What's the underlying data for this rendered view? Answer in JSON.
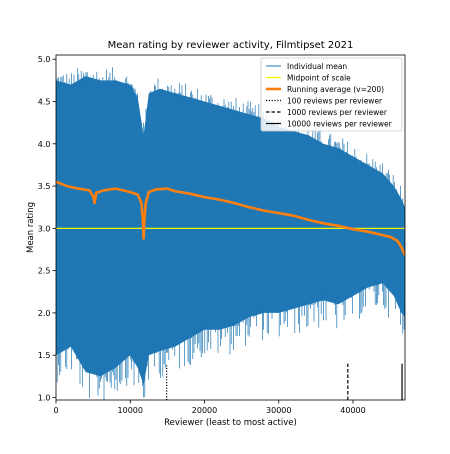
{
  "chart_data": {
    "type": "line",
    "title": "Mean rating by reviewer activity, Filmtipset 2021",
    "xlabel": "Reviewer (least to most active)",
    "ylabel": "Mean rating",
    "xlim": [
      0,
      47000
    ],
    "ylim": [
      0.97,
      5.05
    ],
    "xticks": [
      0,
      10000,
      20000,
      30000,
      40000
    ],
    "xtick_labels": [
      "0",
      "10000",
      "20000",
      "30000",
      "40000"
    ],
    "yticks": [
      1.0,
      1.5,
      2.0,
      2.5,
      3.0,
      3.5,
      4.0,
      4.5,
      5.0
    ],
    "ytick_labels": [
      "1.0",
      "1.5",
      "2.0",
      "2.5",
      "3.0",
      "3.5",
      "4.0",
      "4.5",
      "5.0"
    ],
    "grid": false,
    "legend_position": "top-right",
    "series": [
      {
        "name": "Individual mean",
        "style": "band",
        "color": "#1f77b4",
        "x": [
          0,
          2000,
          4000,
          6000,
          8000,
          10000,
          11000,
          11800,
          12500,
          14000,
          16000,
          18000,
          20000,
          22000,
          24000,
          26000,
          28000,
          30000,
          32000,
          34000,
          36000,
          38000,
          40000,
          42000,
          44000,
          45500,
          46500,
          47000
        ],
        "upper": [
          4.75,
          4.7,
          4.8,
          4.75,
          4.75,
          4.7,
          4.55,
          4.1,
          4.6,
          4.65,
          4.6,
          4.55,
          4.5,
          4.45,
          4.4,
          4.35,
          4.3,
          4.2,
          4.15,
          4.1,
          4.0,
          3.95,
          3.85,
          3.75,
          3.65,
          3.5,
          3.35,
          3.25
        ],
        "lower": [
          1.5,
          1.6,
          1.3,
          1.25,
          1.35,
          1.5,
          1.35,
          1.15,
          1.5,
          1.55,
          1.6,
          1.7,
          1.8,
          1.8,
          1.85,
          1.95,
          2.0,
          2.0,
          2.05,
          2.1,
          2.15,
          2.1,
          2.2,
          2.3,
          2.35,
          2.2,
          2.0,
          1.95
        ]
      },
      {
        "name": "Midpoint of scale",
        "style": "hline",
        "color": "#f5f500",
        "y": 3.0
      },
      {
        "name": "Running average (v=200)",
        "style": "line",
        "color": "#ff7f0e",
        "x": [
          0,
          1500,
          3000,
          4500,
          5000,
          5200,
          5400,
          6500,
          8000,
          9500,
          11000,
          11500,
          11700,
          11800,
          11900,
          12100,
          12500,
          13500,
          15000,
          16000,
          18000,
          20000,
          22000,
          24000,
          26000,
          28000,
          30000,
          32000,
          34000,
          36000,
          38000,
          40000,
          42000,
          44000,
          45000,
          46000,
          46500,
          47000
        ],
        "y": [
          3.55,
          3.5,
          3.47,
          3.45,
          3.38,
          3.3,
          3.42,
          3.45,
          3.47,
          3.44,
          3.4,
          3.3,
          3.1,
          2.88,
          3.1,
          3.3,
          3.43,
          3.46,
          3.47,
          3.44,
          3.41,
          3.37,
          3.34,
          3.3,
          3.25,
          3.21,
          3.18,
          3.15,
          3.1,
          3.06,
          3.03,
          2.99,
          2.96,
          2.92,
          2.9,
          2.85,
          2.78,
          2.68
        ]
      }
    ],
    "markers": [
      {
        "name": "100 reviews per reviewer",
        "style": "dotted",
        "x": 14900,
        "y_top": 1.4
      },
      {
        "name": "1000 reviews per reviewer",
        "style": "dashed",
        "x": 39300,
        "y_top": 1.4
      },
      {
        "name": "10000 reviews per reviewer",
        "style": "solid",
        "x": 46600,
        "y_top": 1.4
      }
    ]
  }
}
